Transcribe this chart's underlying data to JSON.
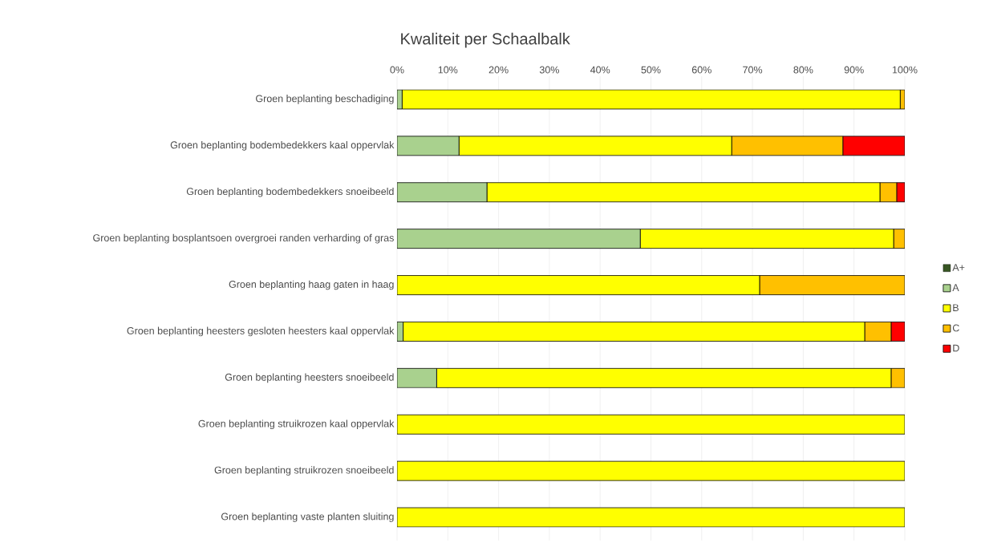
{
  "chart_data": {
    "type": "bar",
    "orientation": "horizontal",
    "stacked": true,
    "title": "Kwaliteit per Schaalbalk",
    "categories": [
      "Groen beplanting beschadiging",
      "Groen beplanting bodembedekkers kaal oppervlak",
      "Groen beplanting bodembedekkers snoeibeeld",
      "Groen beplanting bosplantsoen overgroei randen verharding of gras",
      "Groen beplanting haag gaten in haag",
      "Groen beplanting heesters gesloten heesters kaal oppervlak",
      "Groen beplanting heesters snoeibeeld",
      "Groen beplanting struikrozen kaal oppervlak",
      "Groen beplanting struikrozen snoeibeeld",
      "Groen beplanting vaste planten sluiting"
    ],
    "series": [
      {
        "name": "A+",
        "color": "#375623",
        "values": [
          0,
          0,
          0,
          0,
          0,
          0,
          0,
          0,
          0,
          0
        ]
      },
      {
        "name": "A",
        "color": "#a9d18e",
        "values": [
          1.0,
          12.2,
          17.7,
          47.9,
          0,
          1.2,
          7.8,
          0,
          0,
          0
        ]
      },
      {
        "name": "B",
        "color": "#ffff00",
        "values": [
          98.1,
          53.7,
          77.4,
          49.9,
          71.4,
          90.9,
          89.5,
          100,
          100,
          100
        ]
      },
      {
        "name": "C",
        "color": "#ffc000",
        "values": [
          0.9,
          21.9,
          3.3,
          2.2,
          28.6,
          5.2,
          2.7,
          0,
          0,
          0
        ]
      },
      {
        "name": "D",
        "color": "#ff0000",
        "values": [
          0,
          12.2,
          1.6,
          0,
          0,
          2.7,
          0,
          0,
          0,
          0
        ]
      }
    ],
    "xlim": [
      0,
      100
    ],
    "xticks": [
      {
        "value": 0,
        "label": "0%"
      },
      {
        "value": 10,
        "label": "10%"
      },
      {
        "value": 20,
        "label": "20%"
      },
      {
        "value": 30,
        "label": "30%"
      },
      {
        "value": 40,
        "label": "40%"
      },
      {
        "value": 50,
        "label": "50%"
      },
      {
        "value": 60,
        "label": "60%"
      },
      {
        "value": 70,
        "label": "70%"
      },
      {
        "value": 80,
        "label": "80%"
      },
      {
        "value": 90,
        "label": "90%"
      },
      {
        "value": 100,
        "label": "100%"
      }
    ],
    "grid": "x",
    "legend": "right"
  }
}
